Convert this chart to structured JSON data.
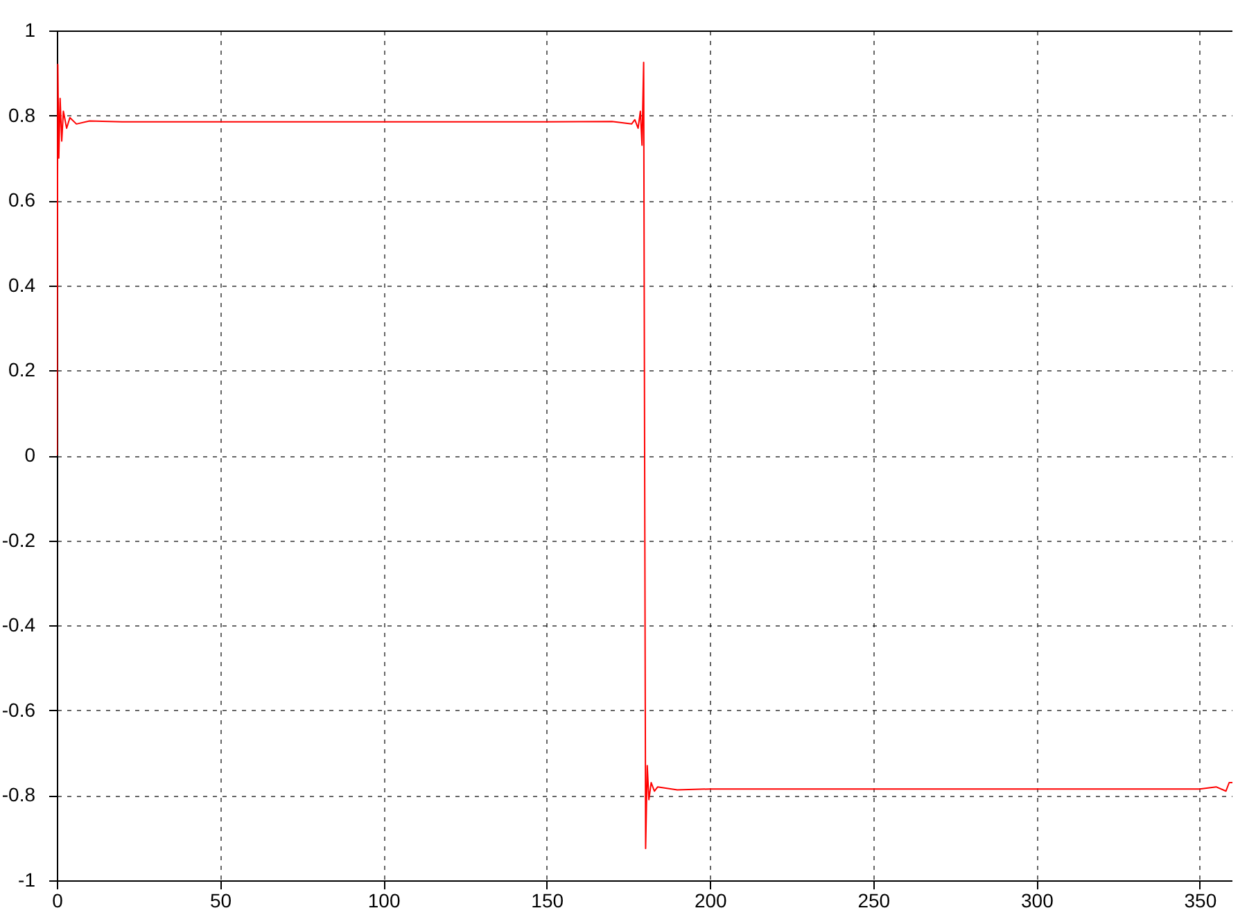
{
  "chart_data": {
    "type": "line",
    "x": [
      0,
      0.3,
      0.6,
      1,
      1.5,
      2,
      3,
      4,
      6,
      10,
      20,
      50,
      100,
      150,
      170,
      176,
      177,
      178,
      178.7,
      179.2,
      179.7,
      180,
      180.3,
      180.8,
      181.3,
      182,
      183,
      184,
      190,
      200,
      250,
      300,
      350,
      355,
      358,
      359,
      360
    ],
    "series": [
      {
        "color": "#ff0000",
        "values": [
          0,
          0.92,
          0.7,
          0.84,
          0.74,
          0.81,
          0.77,
          0.795,
          0.78,
          0.787,
          0.785,
          0.785,
          0.785,
          0.785,
          0.786,
          0.78,
          0.79,
          0.77,
          0.81,
          0.73,
          0.925,
          0,
          -0.925,
          -0.73,
          -0.81,
          -0.77,
          -0.79,
          -0.78,
          -0.787,
          -0.785,
          -0.785,
          -0.785,
          -0.785,
          -0.78,
          -0.79,
          -0.77,
          -0.77
        ]
      }
    ],
    "xlim": [
      0,
      360
    ],
    "xticks": [
      0,
      50,
      100,
      150,
      200,
      250,
      300,
      350
    ],
    "ylim": [
      -1,
      1
    ],
    "yticks": [
      -1,
      -0.8,
      -0.6,
      -0.4,
      -0.2,
      0,
      0.2,
      0.4,
      0.6,
      0.8,
      1
    ],
    "grid": true,
    "legend": false,
    "marker": "none",
    "line_style": "solid"
  }
}
